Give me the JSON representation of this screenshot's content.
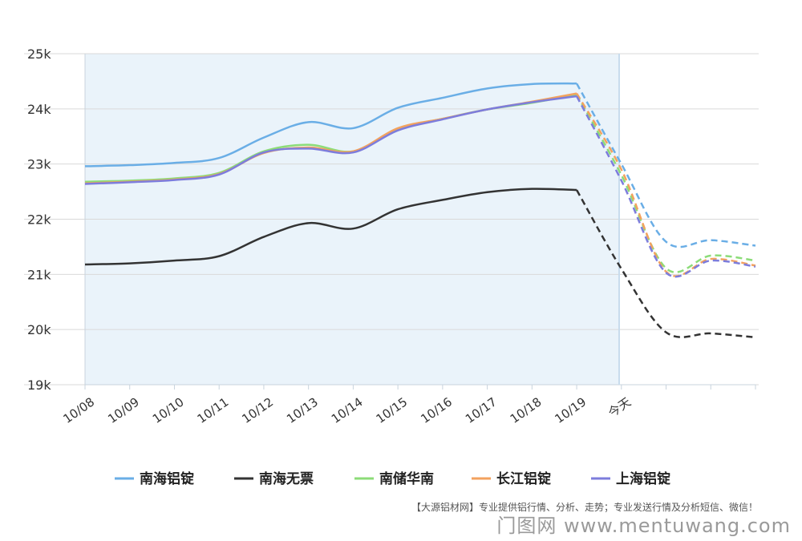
{
  "chart_data": {
    "type": "line",
    "categories": [
      "10/08",
      "10/09",
      "10/10",
      "10/11",
      "10/12",
      "10/13",
      "10/14",
      "10/15",
      "10/16",
      "10/17",
      "10/18",
      "10/19",
      "今天",
      "",
      "",
      ""
    ],
    "forecast_start_index": 11,
    "ylim": [
      19000,
      25000
    ],
    "yticks": [
      19000,
      20000,
      21000,
      22000,
      23000,
      24000,
      25000
    ],
    "ytick_labels": [
      "19k",
      "20k",
      "21k",
      "22k",
      "23k",
      "24k",
      "25k"
    ],
    "grid": true,
    "legend_position": "bottom",
    "series": [
      {
        "name": "南海铝锭",
        "color": "#6aaee6",
        "values": [
          22960,
          22980,
          23020,
          23110,
          23480,
          23760,
          23650,
          24020,
          24200,
          24370,
          24450,
          24460,
          23000,
          21590,
          21620,
          21520
        ]
      },
      {
        "name": "南海无票",
        "color": "#333333",
        "values": [
          21180,
          21200,
          21250,
          21330,
          21680,
          21930,
          21830,
          22180,
          22350,
          22490,
          22550,
          22530,
          21100,
          19950,
          19930,
          19860
        ]
      },
      {
        "name": "南储华南",
        "color": "#8cdc78",
        "values": [
          22680,
          22700,
          22740,
          22840,
          23230,
          23350,
          23230,
          23640,
          23820,
          23990,
          24110,
          24260,
          22800,
          21110,
          21340,
          21250
        ]
      },
      {
        "name": "长江铝锭",
        "color": "#f3a25e",
        "values": [
          22650,
          22680,
          22720,
          22820,
          23200,
          23300,
          23230,
          23650,
          23820,
          23990,
          24130,
          24280,
          22900,
          21050,
          21280,
          21160
        ]
      },
      {
        "name": "上海铝锭",
        "color": "#7d7ddc",
        "values": [
          22640,
          22670,
          22710,
          22810,
          23210,
          23280,
          23210,
          23610,
          23810,
          23990,
          24120,
          24230,
          22700,
          21030,
          21250,
          21140
        ]
      }
    ]
  },
  "footnote": "【大源铝材网】专业提供铝行情、分析、走势；专业发送行情及分析短信、微信！",
  "site_watermark": "门图网 www.mentuwang.com"
}
